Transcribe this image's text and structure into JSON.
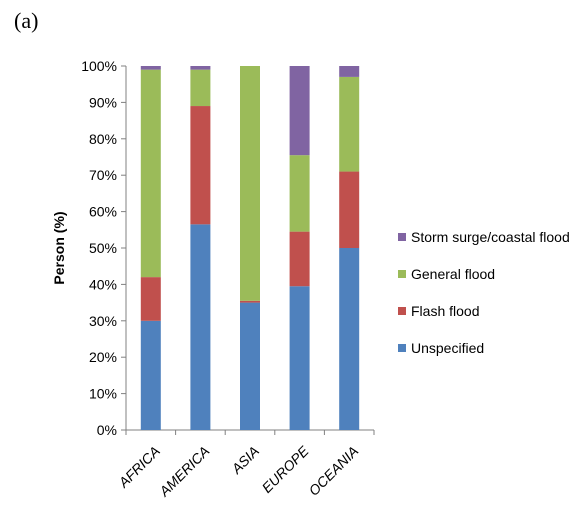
{
  "panel_label": "(a)",
  "chart_data": {
    "type": "bar",
    "stacked": true,
    "categories": [
      "AFRICA",
      "AMERICA",
      "ASIA",
      "EUROPE",
      "OCEANIA"
    ],
    "ylabel": "Person (%)",
    "ylim": [
      0,
      100
    ],
    "yticks": [
      "0%",
      "10%",
      "20%",
      "30%",
      "40%",
      "50%",
      "60%",
      "70%",
      "80%",
      "90%",
      "100%"
    ],
    "legend_position": "right",
    "series": [
      {
        "name": "Unspecified",
        "color": "#4F81BD",
        "values": [
          30,
          56.5,
          35,
          39.5,
          50
        ]
      },
      {
        "name": "Flash flood",
        "color": "#C0504D",
        "values": [
          12,
          32.5,
          0.5,
          15,
          21
        ]
      },
      {
        "name": "General flood",
        "color": "#9BBB59",
        "values": [
          57,
          10,
          64.5,
          21,
          26
        ]
      },
      {
        "name": "Storm surge/coastal flood",
        "color": "#8064A2",
        "values": [
          1,
          1,
          0,
          24.5,
          3
        ]
      }
    ]
  }
}
